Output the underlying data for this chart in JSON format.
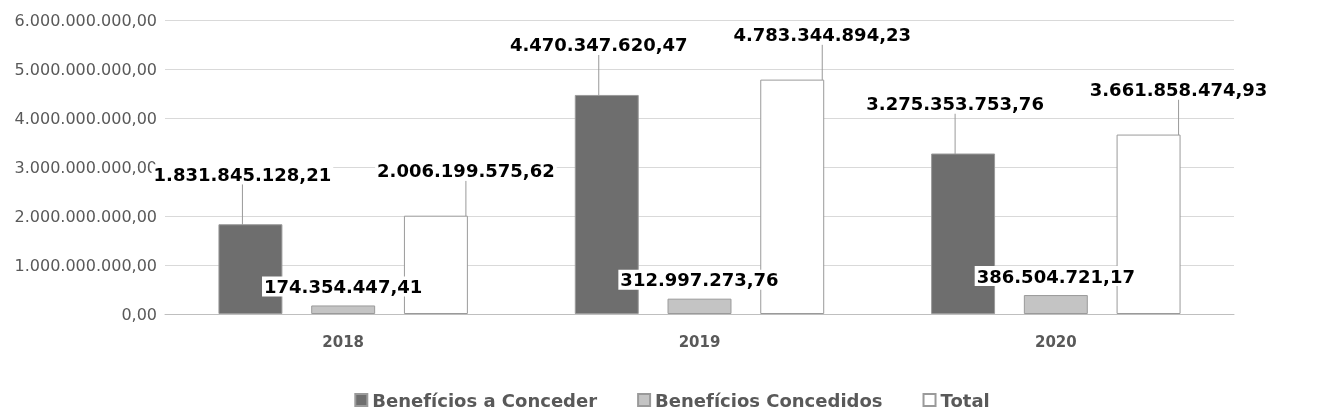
{
  "chart_data": {
    "type": "bar",
    "categories": [
      "2018",
      "2019",
      "2020"
    ],
    "series": [
      {
        "name": "Benefícios a Conceder",
        "color": "#6e6e6e",
        "values": [
          1831845128.21,
          4470347620.47,
          3275353753.76
        ],
        "value_labels": [
          "1.831.845.128,21",
          "4.470.347.620,47",
          "3.275.353.753,76"
        ]
      },
      {
        "name": "Benefícios Concedidos",
        "color": "#c4c4c4",
        "values": [
          174354447.41,
          312997273.76,
          386504721.17
        ],
        "value_labels": [
          "174.354.447,41",
          "312.997.273,76",
          "386.504.721,17"
        ]
      },
      {
        "name": "Total",
        "color": "#ffffff",
        "values": [
          2006199575.62,
          4783344894.23,
          3661858474.93
        ],
        "value_labels": [
          "2.006.199.575,62",
          "4.783.344.894,23",
          "3.661.858.474,93"
        ]
      }
    ],
    "ylim": [
      0,
      6000000000
    ],
    "yticks": [
      {
        "value": 0,
        "label": "0,00"
      },
      {
        "value": 1000000000,
        "label": "1.000.000.000,00"
      },
      {
        "value": 2000000000,
        "label": "2.000.000.000,00"
      },
      {
        "value": 3000000000,
        "label": "3.000.000.000,00"
      },
      {
        "value": 4000000000,
        "label": "4.000.000.000,00"
      },
      {
        "value": 5000000000,
        "label": "5.000.000.000,00"
      },
      {
        "value": 6000000000,
        "label": "6.000.000.000,00"
      }
    ],
    "grid": "y",
    "legend": "bottom"
  }
}
